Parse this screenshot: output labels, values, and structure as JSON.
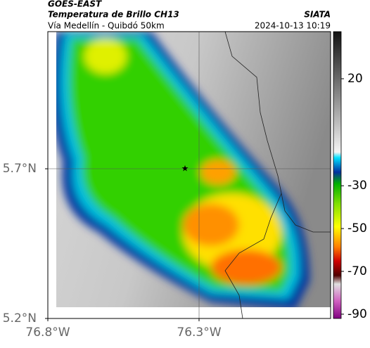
{
  "header": {
    "title": "GOES-EAST",
    "subtitle": "Temperatura de Brillo CH13",
    "location": "Vía Medellín - Quibdó 50km",
    "source": "SIATA",
    "datetime": "2024-10-13 10:19"
  },
  "map": {
    "xlim": [
      -76.8,
      -75.865
    ],
    "ylim": [
      5.2,
      6.158
    ],
    "xticks": [
      {
        "value": -76.8,
        "label": "76.8°W"
      },
      {
        "value": -76.3,
        "label": "76.3°W"
      }
    ],
    "yticks": [
      {
        "value": 5.7,
        "label": "5.7°N"
      },
      {
        "value": 5.2,
        "label": "5.2°N"
      }
    ]
  },
  "colorbar": {
    "lim": [
      -92,
      42
    ],
    "ticks": [
      20,
      -30,
      -50,
      -70,
      -90
    ]
  }
}
